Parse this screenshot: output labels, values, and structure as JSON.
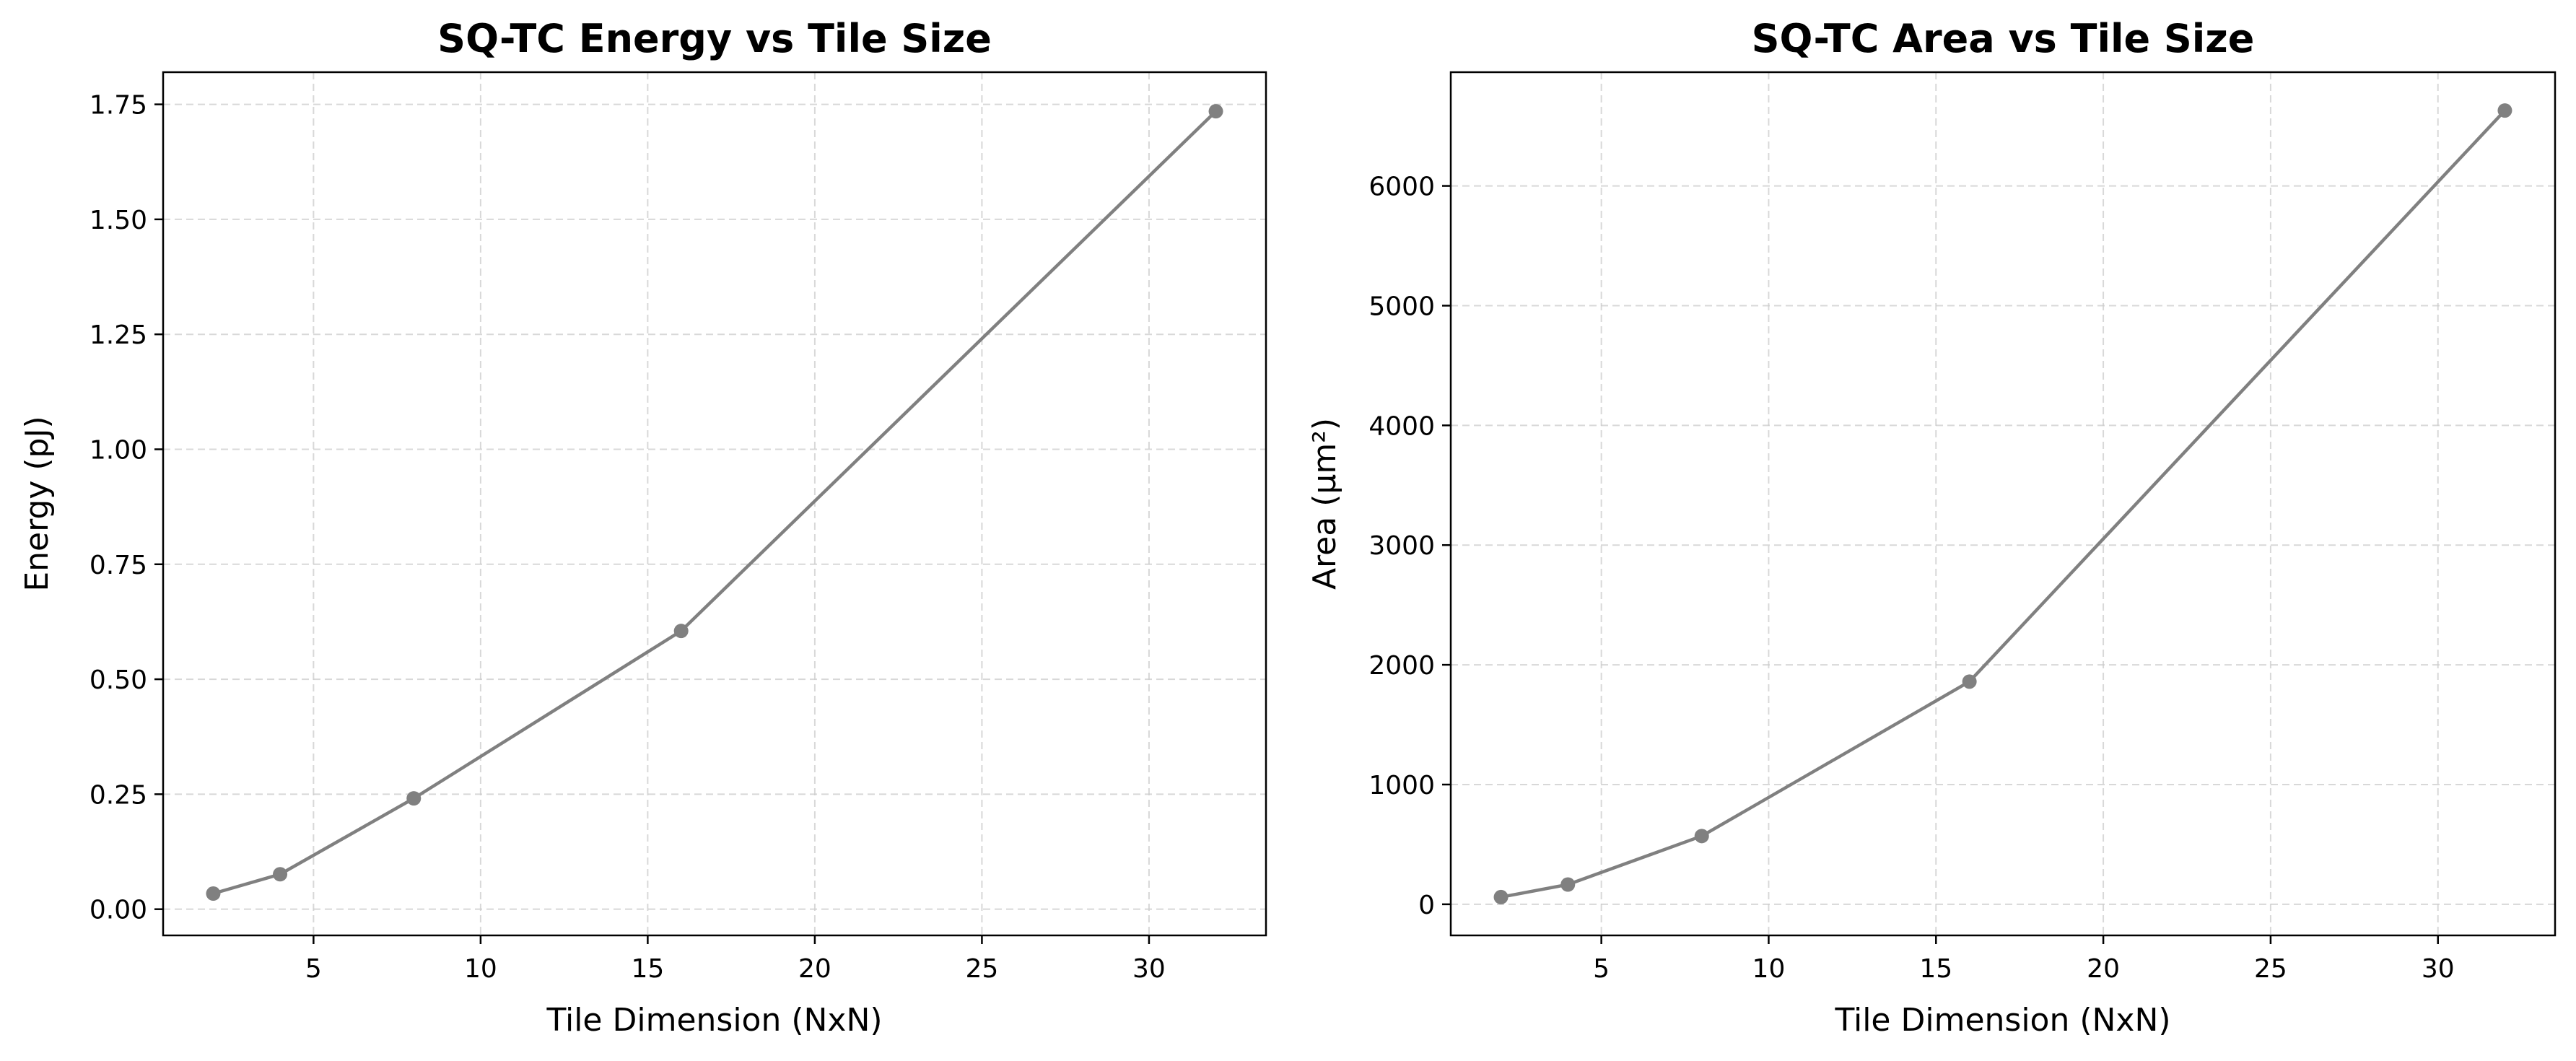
{
  "chart_data": [
    {
      "type": "line",
      "title": "SQ-TC Energy vs Tile Size",
      "xlabel": "Tile Dimension (NxN)",
      "ylabel": "Energy (pJ)",
      "x": [
        2,
        4,
        8,
        16,
        32
      ],
      "series": [
        {
          "values": [
            0.034,
            0.076,
            0.241,
            0.605,
            1.735
          ]
        }
      ],
      "xlim": [
        0.5,
        33.5
      ],
      "ylim": [
        -0.057,
        1.82
      ],
      "xticks": [
        5,
        10,
        15,
        20,
        25,
        30
      ],
      "xtick_labels": [
        "5",
        "10",
        "15",
        "20",
        "25",
        "30"
      ],
      "yticks": [
        0,
        0.25,
        0.5,
        0.75,
        1.0,
        1.25,
        1.5,
        1.75
      ],
      "ytick_labels": [
        "0.00",
        "0.25",
        "0.50",
        "0.75",
        "1.00",
        "1.25",
        "1.50",
        "1.75"
      ],
      "color": "#808080",
      "grid": true,
      "legend": "none"
    },
    {
      "type": "line",
      "title": "SQ-TC Area vs Tile Size",
      "xlabel": "Tile Dimension (NxN)",
      "ylabel": "Area (µm²)",
      "x": [
        2,
        4,
        8,
        16,
        32
      ],
      "series": [
        {
          "values": [
            60,
            165,
            570,
            1860,
            6630
          ]
        }
      ],
      "xlim": [
        0.5,
        33.5
      ],
      "ylim": [
        -260,
        6950
      ],
      "xticks": [
        5,
        10,
        15,
        20,
        25,
        30
      ],
      "xtick_labels": [
        "5",
        "10",
        "15",
        "20",
        "25",
        "30"
      ],
      "yticks": [
        0,
        1000,
        2000,
        3000,
        4000,
        5000,
        6000
      ],
      "ytick_labels": [
        "0",
        "1000",
        "2000",
        "3000",
        "4000",
        "5000",
        "6000"
      ],
      "color": "#808080",
      "grid": true,
      "legend": "none"
    }
  ]
}
